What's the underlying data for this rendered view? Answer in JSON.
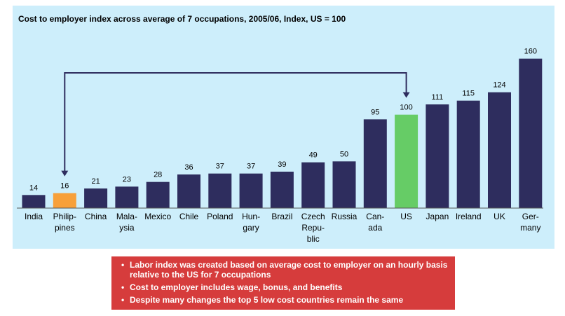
{
  "chart_data": {
    "type": "bar",
    "title": "Cost to employer index across average of 7 occupations, 2005/06, Index, US = 100",
    "xlabel": "",
    "ylabel": "",
    "ylim": [
      0,
      165
    ],
    "categories": [
      [
        "India"
      ],
      [
        "Philip-",
        "pines"
      ],
      [
        "China"
      ],
      [
        "Mala-",
        "ysia"
      ],
      [
        "Mexico"
      ],
      [
        "Chile"
      ],
      [
        "Poland"
      ],
      [
        "Hun-",
        "gary"
      ],
      [
        "Brazil"
      ],
      [
        "Czech",
        "Repu-",
        "blic"
      ],
      [
        "Russia"
      ],
      [
        "Can-",
        "ada"
      ],
      [
        "US"
      ],
      [
        "Japan"
      ],
      [
        "Ireland"
      ],
      [
        "UK"
      ],
      [
        "Ger-",
        "many"
      ]
    ],
    "values": [
      14,
      16,
      21,
      23,
      28,
      36,
      37,
      37,
      39,
      49,
      50,
      95,
      100,
      111,
      115,
      124,
      160
    ],
    "highlight": {
      "Philippines": "#f7a03a",
      "US": "#66cc66"
    },
    "annotation": "arrow from US to Philippines"
  },
  "colors": {
    "panel_bg": "#cdeefb",
    "bar": "#2e2d5e",
    "philippines": "#f7a03a",
    "us": "#66cc66",
    "notes_bg": "#d63c3c"
  },
  "notes": [
    "Labor index was created based on average cost to employer on an hourly basis relative to the US for 7 occupations",
    "Cost to employer includes wage, bonus, and benefits",
    "Despite many changes the top 5 low cost countries remain the same"
  ]
}
